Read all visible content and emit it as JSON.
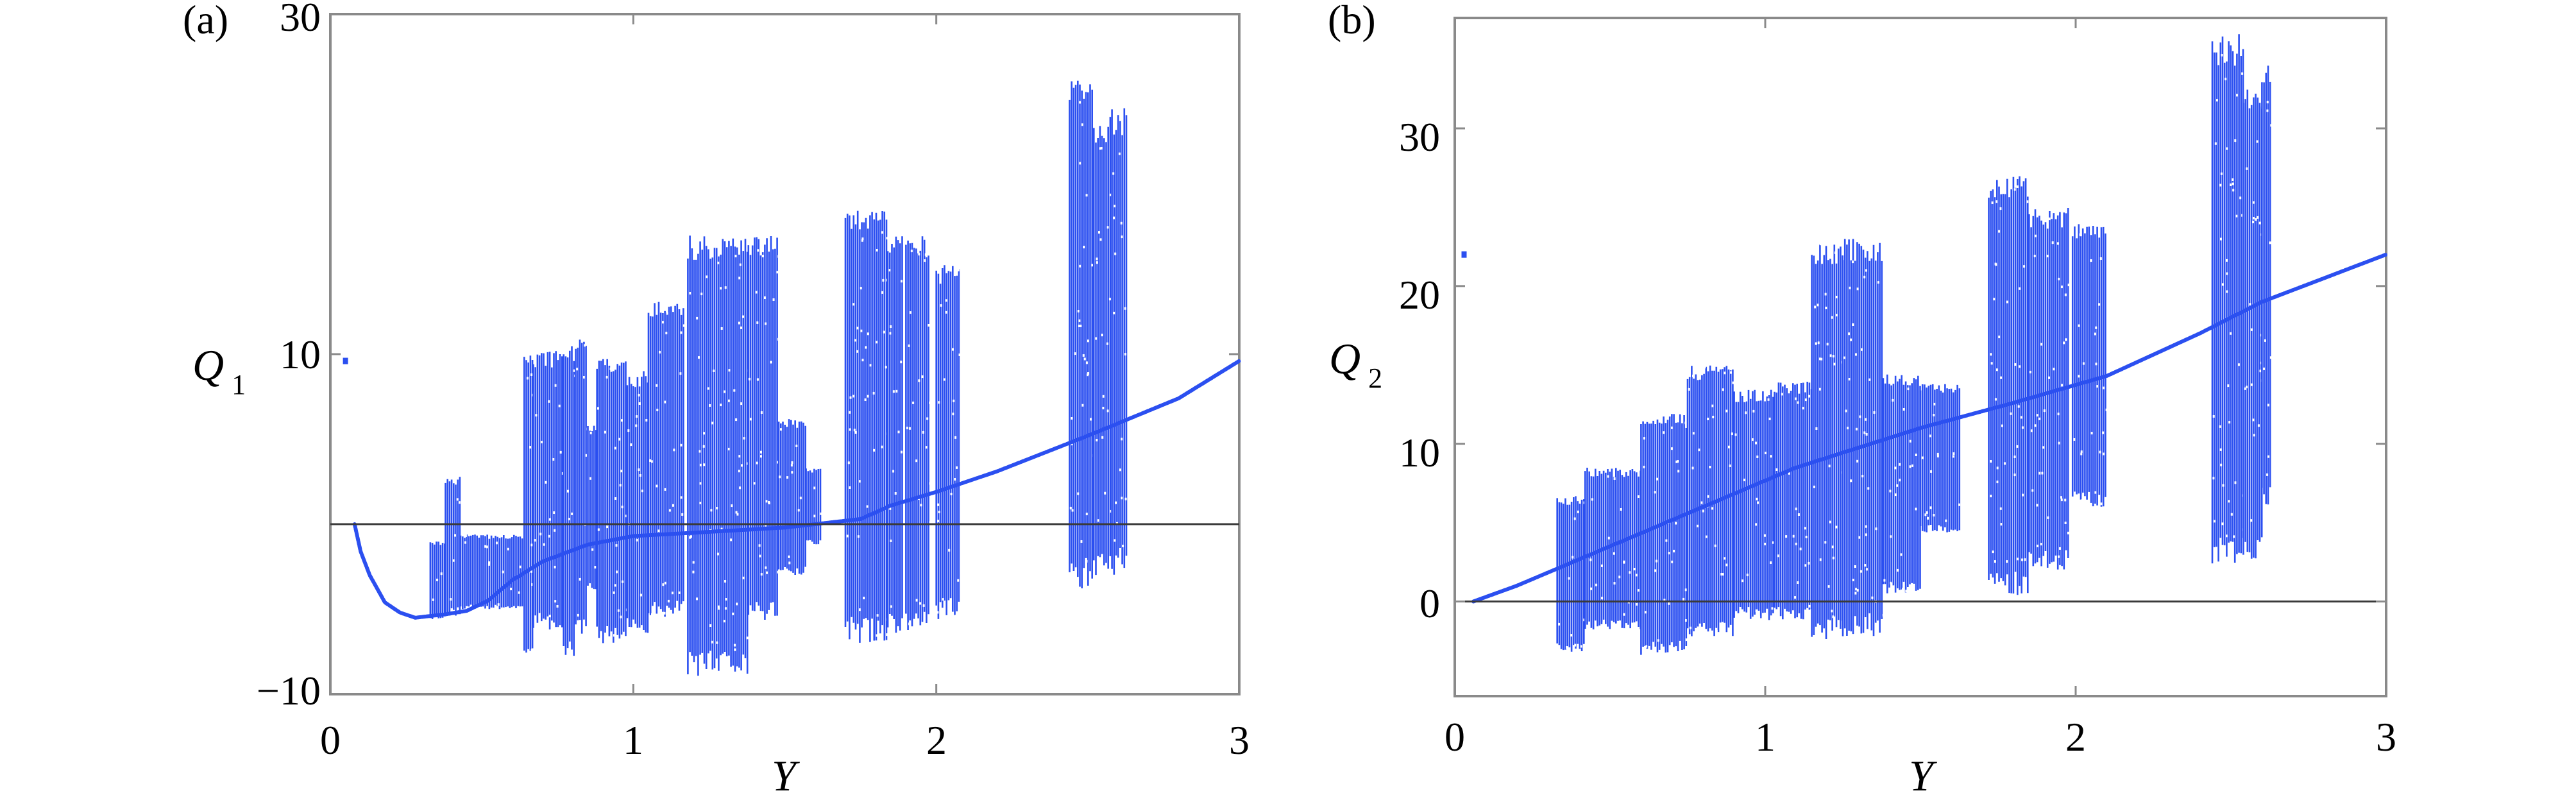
{
  "chart_data": [
    {
      "type": "scatter",
      "panel_label": "(a)",
      "xlabel": "Y",
      "ylabel": "Q",
      "ylabel_subscript": "1",
      "xlim": [
        0,
        3
      ],
      "ylim": [
        -10,
        30
      ],
      "x_tick_labels": [
        "0",
        "1",
        "2",
        "3"
      ],
      "y_tick_labels": [
        "−10",
        "10",
        "30"
      ],
      "reference_line_y": 0,
      "grid": false,
      "series": [
        {
          "color": "#2b4ff0",
          "curve_points": [
            [
              0.08,
              0.0
            ],
            [
              0.1,
              -1.6
            ],
            [
              0.13,
              -3.0
            ],
            [
              0.18,
              -4.6
            ],
            [
              0.23,
              -5.2
            ],
            [
              0.28,
              -5.5
            ],
            [
              0.33,
              -5.4
            ],
            [
              0.38,
              -5.3
            ],
            [
              0.45,
              -5.1
            ],
            [
              0.52,
              -4.5
            ],
            [
              0.6,
              -3.3
            ],
            [
              0.7,
              -2.2
            ],
            [
              0.85,
              -1.2
            ],
            [
              1.0,
              -0.7
            ],
            [
              1.2,
              -0.5
            ],
            [
              1.5,
              -0.2
            ],
            [
              1.75,
              0.3
            ],
            [
              1.85,
              1.1
            ],
            [
              2.0,
              1.9
            ],
            [
              2.2,
              3.1
            ],
            [
              2.5,
              5.2
            ],
            [
              2.8,
              7.4
            ],
            [
              3.0,
              9.6
            ]
          ],
          "isolated_points": [
            [
              0.05,
              9.6
            ]
          ],
          "bands": [
            {
              "x": [
                0.33,
                0.38
              ],
              "ymin": -5.6,
              "ymax": -1.0
            },
            {
              "x": [
                0.38,
                0.43
              ],
              "ymin": -5.4,
              "ymax": 2.8
            },
            {
              "x": [
                0.43,
                0.64
              ],
              "ymin": -5.0,
              "ymax": -0.6
            },
            {
              "x": [
                0.64,
                0.67
              ],
              "ymin": -8.0,
              "ymax": 10.2
            },
            {
              "x": [
                0.67,
                0.77
              ],
              "ymin": -6.2,
              "ymax": 10.2
            },
            {
              "x": [
                0.77,
                0.81
              ],
              "ymin": -8.0,
              "ymax": 10.5
            },
            {
              "x": [
                0.81,
                0.85
              ],
              "ymin": -6.5,
              "ymax": 11.3
            },
            {
              "x": [
                0.85,
                0.88
              ],
              "ymin": -4.0,
              "ymax": 6.0
            },
            {
              "x": [
                0.88,
                0.98
              ],
              "ymin": -7.0,
              "ymax": 9.8
            },
            {
              "x": [
                0.98,
                1.05
              ],
              "ymin": -6.4,
              "ymax": 9.0
            },
            {
              "x": [
                1.05,
                1.17
              ],
              "ymin": -5.6,
              "ymax": 13.3
            },
            {
              "x": [
                1.18,
                1.38
              ],
              "ymin": -9.0,
              "ymax": 17.1
            },
            {
              "x": [
                1.38,
                1.48
              ],
              "ymin": -5.8,
              "ymax": 17.0
            },
            {
              "x": [
                1.48,
                1.57
              ],
              "ymin": -3.0,
              "ymax": 6.2
            },
            {
              "x": [
                1.57,
                1.62
              ],
              "ymin": -1.2,
              "ymax": 3.3
            },
            {
              "x": [
                1.7,
                1.84
              ],
              "ymin": -7.0,
              "ymax": 18.8
            },
            {
              "x": [
                1.84,
                1.89
              ],
              "ymin": -6.6,
              "ymax": 17.0
            },
            {
              "x": [
                1.9,
                1.98
              ],
              "ymin": -6.5,
              "ymax": 17.0
            },
            {
              "x": [
                2.0,
                2.08
              ],
              "ymin": -5.6,
              "ymax": 15.4
            },
            {
              "x": [
                2.44,
                2.52
              ],
              "ymin": -3.8,
              "ymax": 26.3
            },
            {
              "x": [
                2.52,
                2.58
              ],
              "ymin": -3.2,
              "ymax": 24.0
            },
            {
              "x": [
                2.58,
                2.63
              ],
              "ymin": -3.0,
              "ymax": 24.5
            }
          ]
        }
      ]
    },
    {
      "type": "scatter",
      "panel_label": "(b)",
      "xlabel": "Y",
      "ylabel": "Q",
      "ylabel_subscript": "2",
      "xlim": [
        0,
        3
      ],
      "ylim": [
        -6,
        37
      ],
      "x_tick_labels": [
        "0",
        "1",
        "2",
        "3"
      ],
      "y_tick_labels": [
        "0",
        "10",
        "20",
        "30"
      ],
      "y_ticks": [
        0,
        10,
        20,
        30
      ],
      "reference_line_y": 0,
      "grid": false,
      "series": [
        {
          "color": "#2b4ff0",
          "curve_points": [
            [
              0.06,
              0.0
            ],
            [
              0.2,
              1.0
            ],
            [
              0.5,
              3.5
            ],
            [
              0.8,
              6.0
            ],
            [
              1.1,
              8.5
            ],
            [
              1.5,
              11.0
            ],
            [
              1.8,
              12.6
            ],
            [
              2.1,
              14.3
            ],
            [
              2.4,
              17.0
            ],
            [
              2.6,
              19.0
            ],
            [
              3.0,
              22.0
            ]
          ],
          "isolated_points": [
            [
              0.03,
              22.0
            ]
          ],
          "bands": [
            {
              "x": [
                0.33,
                0.42
              ],
              "ymin": -3.2,
              "ymax": 6.7
            },
            {
              "x": [
                0.42,
                0.6
              ],
              "ymin": -1.8,
              "ymax": 8.5
            },
            {
              "x": [
                0.6,
                0.75
              ],
              "ymin": -3.4,
              "ymax": 11.9
            },
            {
              "x": [
                0.75,
                0.9
              ],
              "ymin": -2.2,
              "ymax": 15.0
            },
            {
              "x": [
                0.9,
                1.03
              ],
              "ymin": -1.2,
              "ymax": 13.5
            },
            {
              "x": [
                1.03,
                1.15
              ],
              "ymin": -1.2,
              "ymax": 14.0
            },
            {
              "x": [
                1.15,
                1.25
              ],
              "ymin": -2.4,
              "ymax": 22.8
            },
            {
              "x": [
                1.25,
                1.38
              ],
              "ymin": -2.2,
              "ymax": 23.0
            },
            {
              "x": [
                1.38,
                1.5
              ],
              "ymin": 0.5,
              "ymax": 14.5
            },
            {
              "x": [
                1.5,
                1.63
              ],
              "ymin": 4.3,
              "ymax": 13.8
            },
            {
              "x": [
                1.72,
                1.85
              ],
              "ymin": 0.3,
              "ymax": 27.0
            },
            {
              "x": [
                1.85,
                1.98
              ],
              "ymin": 2.0,
              "ymax": 25.0
            },
            {
              "x": [
                1.99,
                2.1
              ],
              "ymin": 6.0,
              "ymax": 24.0
            },
            {
              "x": [
                2.44,
                2.54
              ],
              "ymin": 2.2,
              "ymax": 36.0
            },
            {
              "x": [
                2.54,
                2.6
              ],
              "ymin": 2.5,
              "ymax": 32.5
            },
            {
              "x": [
                2.6,
                2.63
              ],
              "ymin": 6.0,
              "ymax": 34.5
            }
          ]
        }
      ]
    }
  ]
}
